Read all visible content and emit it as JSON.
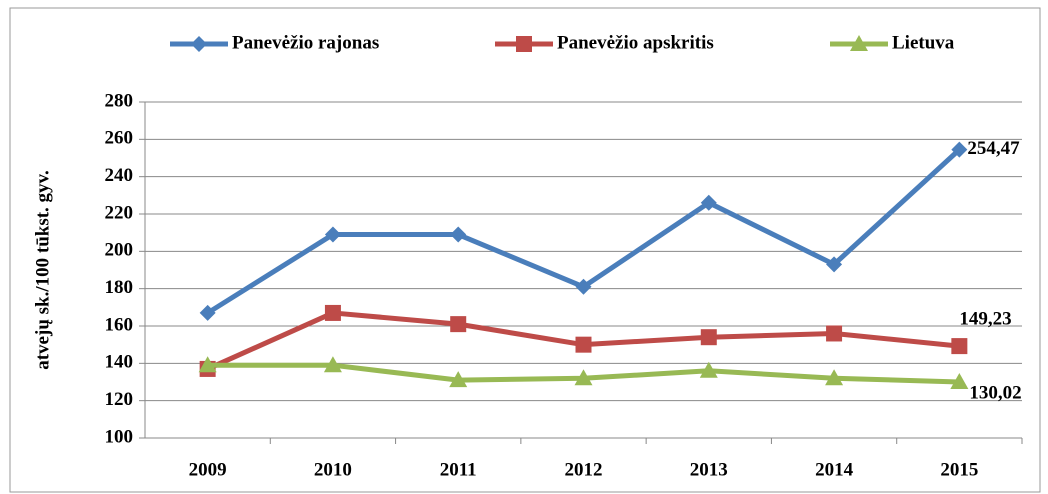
{
  "chart_data": {
    "type": "line",
    "y_label": "atvejų  sk./100 tūkst. gyv.",
    "categories": [
      "2009",
      "2010",
      "2011",
      "2012",
      "2013",
      "2014",
      "2015"
    ],
    "series": [
      {
        "name": "Panevėžio rajonas",
        "color": "#4a7ebb",
        "marker": "diamond",
        "values": [
          167,
          209,
          209,
          181,
          226,
          193,
          254.47
        ],
        "value_labels": [
          null,
          null,
          null,
          null,
          null,
          null,
          "254,47"
        ]
      },
      {
        "name": "Panevėžio apskritis",
        "color": "#be4b48",
        "marker": "square",
        "values": [
          137,
          167,
          161,
          150,
          154,
          156,
          149.23
        ],
        "value_labels": [
          null,
          null,
          null,
          null,
          null,
          null,
          "149,23"
        ]
      },
      {
        "name": "Lietuva",
        "color": "#98b954",
        "marker": "triangle",
        "values": [
          139,
          139,
          131,
          132,
          136,
          132,
          130.02
        ],
        "value_labels": [
          null,
          null,
          null,
          null,
          null,
          null,
          "130,02"
        ]
      }
    ],
    "ylim": [
      100,
      280
    ],
    "yticks": [
      100,
      120,
      140,
      160,
      180,
      200,
      220,
      240,
      260,
      280
    ],
    "grid": true,
    "legend": "top"
  }
}
